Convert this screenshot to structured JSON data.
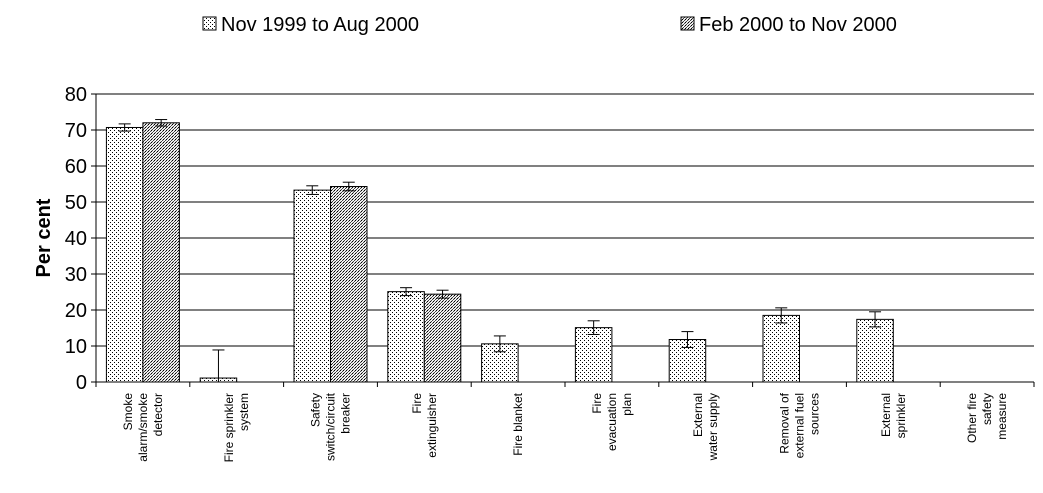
{
  "chart_data": {
    "type": "bar",
    "title": "",
    "xlabel": "",
    "ylabel": "Per cent",
    "ylim": [
      0,
      80
    ],
    "yticks": [
      0,
      10,
      20,
      30,
      40,
      50,
      60,
      70,
      80
    ],
    "grid": true,
    "legend_position": "top",
    "categories": [
      "Smoke alarm/smoke detector",
      "Fire sprinkler system",
      "Safety switch/circuit breaker",
      "Fire extinguisher",
      "Fire blanket",
      "Fire evacuation plan",
      "External water supply",
      "Removal of external fuel sources",
      "External sprinkler",
      "Other fire safety measure"
    ],
    "category_label_lines": [
      [
        "Smoke",
        "alarm/smoke",
        "detector"
      ],
      [
        "Fire sprinkler",
        "system"
      ],
      [
        "Safety",
        "switch/circuit",
        "breaker"
      ],
      [
        "Fire",
        "extinguisher"
      ],
      [
        "Fire blanket"
      ],
      [
        "Fire",
        "evacuation",
        "plan"
      ],
      [
        "External",
        "water supply"
      ],
      [
        "Removal of",
        "external fuel",
        "sources"
      ],
      [
        "External",
        "sprinkler"
      ],
      [
        "Other fire",
        "safety",
        "measure"
      ]
    ],
    "series": [
      {
        "name": "Nov 1999 to Aug 2000",
        "values": [
          70.7,
          1.1,
          53.3,
          25.1,
          10.6,
          15.1,
          11.8,
          18.5,
          17.4,
          null
        ],
        "error": [
          1.0,
          7.8,
          1.2,
          1.1,
          2.2,
          1.9,
          2.2,
          2.1,
          2.1,
          null
        ]
      },
      {
        "name": "Feb 2000 to Nov 2000",
        "values": [
          72.0,
          null,
          54.3,
          24.4,
          null,
          null,
          null,
          null,
          null,
          null
        ],
        "error": [
          0.9,
          null,
          1.2,
          1.1,
          null,
          null,
          null,
          null,
          null,
          null
        ]
      }
    ]
  }
}
